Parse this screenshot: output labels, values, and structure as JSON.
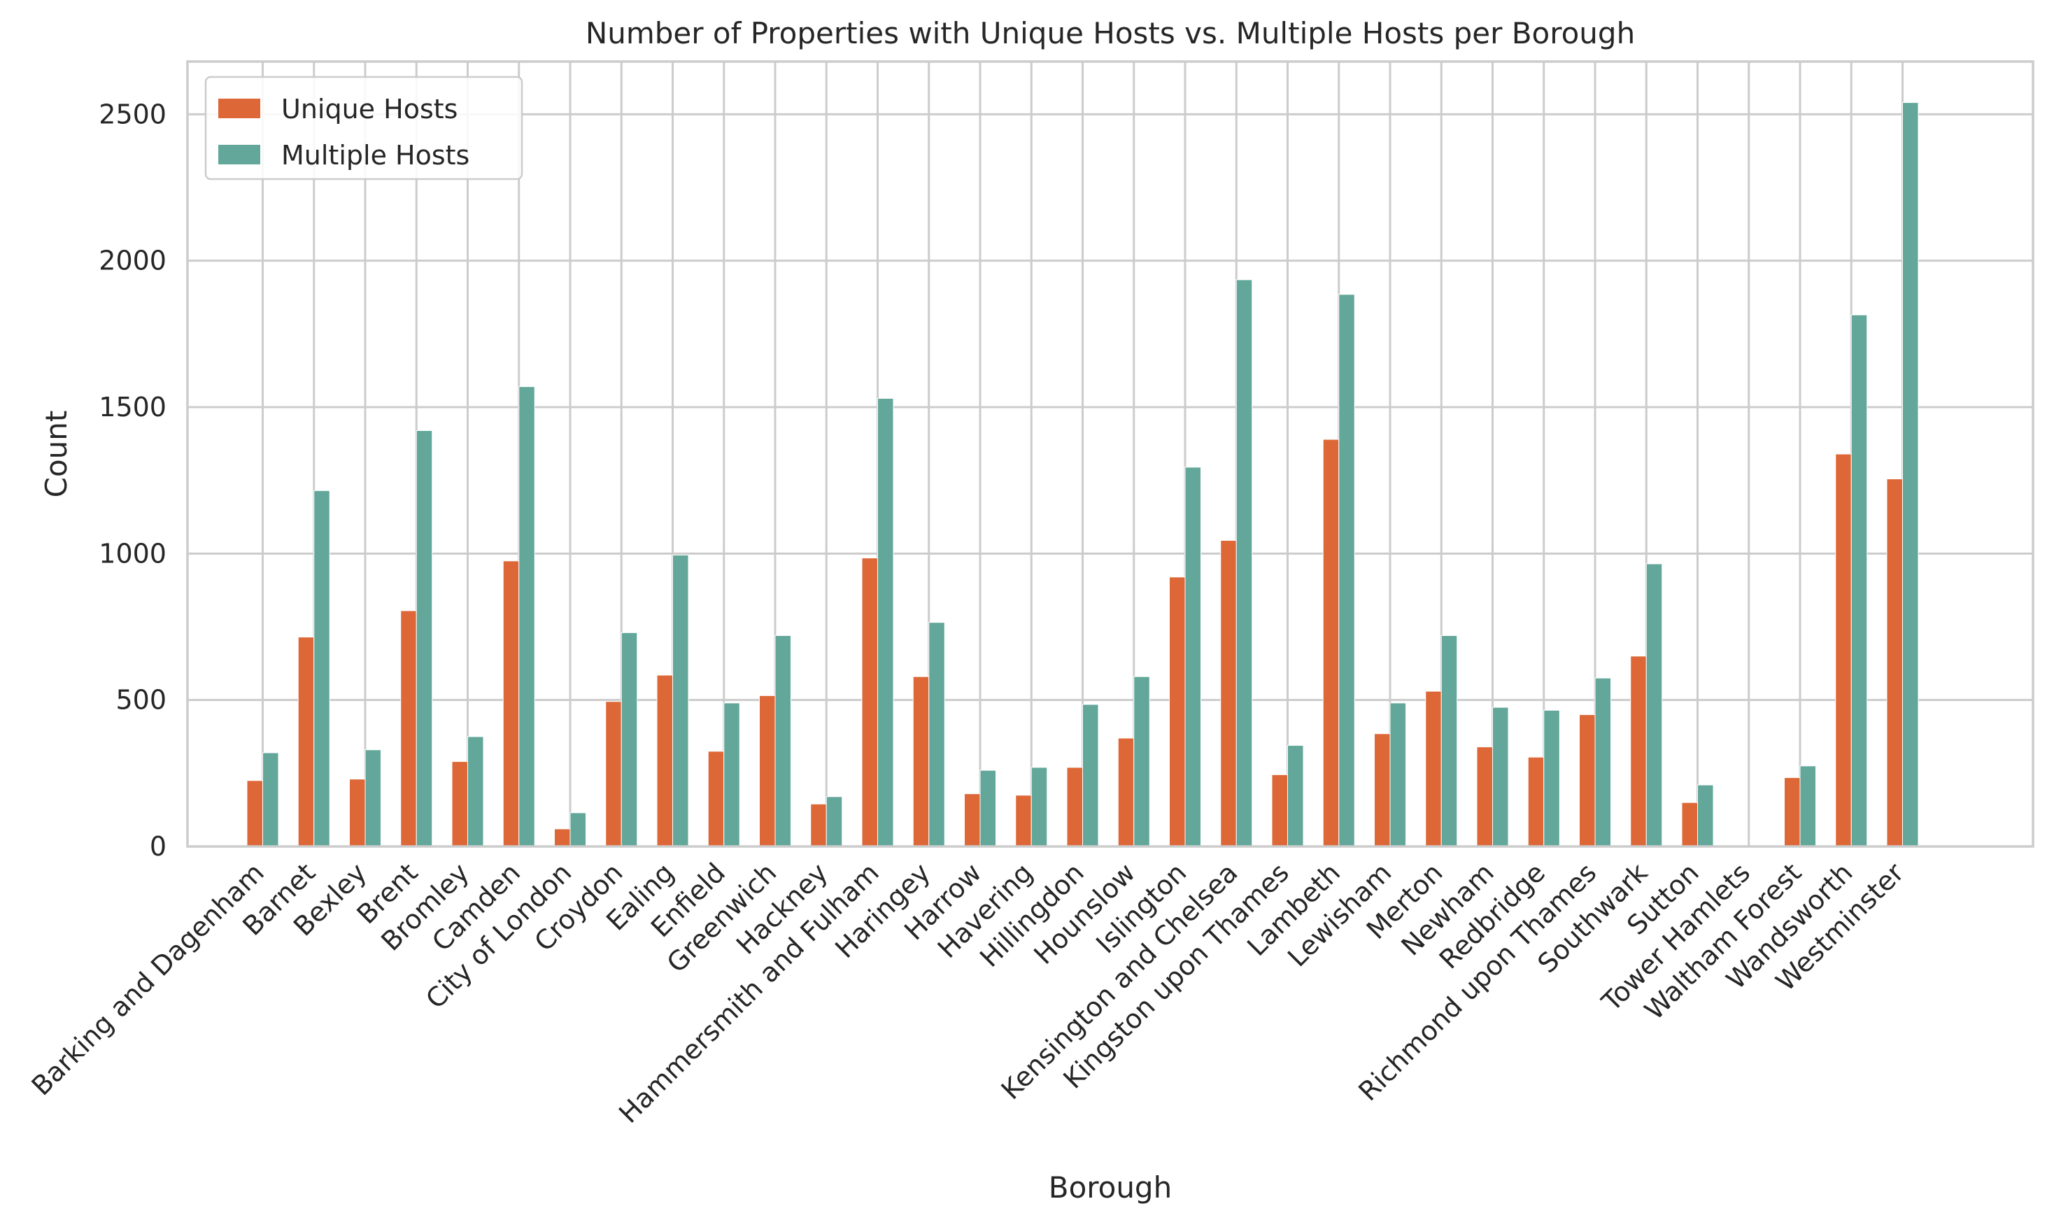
{
  "chart_data": {
    "type": "bar",
    "title": "Number of Properties with Unique Hosts vs. Multiple Hosts per Borough",
    "xlabel": "Borough",
    "ylabel": "Count",
    "ylim": [
      0,
      2680
    ],
    "yticks": [
      0,
      500,
      1000,
      1500,
      2000,
      2500
    ],
    "grid": true,
    "legend_position": "top-left",
    "colors": {
      "unique": "#dd6737",
      "multiple": "#62a79a",
      "grid": "#cccccc",
      "spine": "#cccccc",
      "text": "#262626"
    },
    "categories": [
      "Barking and Dagenham",
      "Barnet",
      "Bexley",
      "Brent",
      "Bromley",
      "Camden",
      "City of London",
      "Croydon",
      "Ealing",
      "Enfield",
      "Greenwich",
      "Hackney",
      "Hammersmith and Fulham",
      "Haringey",
      "Harrow",
      "Havering",
      "Hillingdon",
      "Hounslow",
      "Islington",
      "Kensington and Chelsea",
      "Kingston upon Thames",
      "Lambeth",
      "Lewisham",
      "Merton",
      "Newham",
      "Redbridge",
      "Richmond upon Thames",
      "Southwark",
      "Sutton",
      "Tower Hamlets",
      "Waltham Forest",
      "Wandsworth",
      "Westminster"
    ],
    "series": [
      {
        "name": "Unique Hosts",
        "values": [
          225,
          715,
          230,
          805,
          290,
          975,
          60,
          495,
          585,
          325,
          515,
          145,
          985,
          580,
          180,
          175,
          270,
          370,
          920,
          1045,
          245,
          1390,
          385,
          530,
          340,
          305,
          450,
          650,
          150,
          0,
          235,
          1340,
          1255
        ]
      },
      {
        "name": "Multiple Hosts",
        "values": [
          320,
          1215,
          330,
          1420,
          375,
          1570,
          115,
          730,
          995,
          490,
          720,
          170,
          1530,
          765,
          260,
          270,
          485,
          580,
          1295,
          1935,
          345,
          1885,
          490,
          720,
          475,
          465,
          575,
          965,
          210,
          0,
          275,
          1815,
          2540
        ]
      }
    ]
  }
}
